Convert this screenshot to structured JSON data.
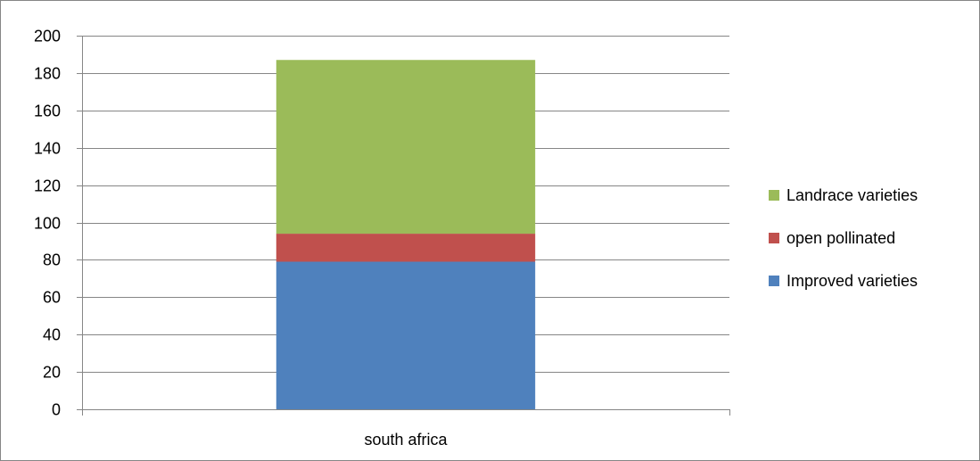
{
  "chart_data": {
    "type": "bar",
    "stacked": true,
    "categories": [
      "south africa"
    ],
    "series": [
      {
        "name": "Improved varieties",
        "values": [
          79
        ],
        "color": "#4F81BD"
      },
      {
        "name": "open pollinated",
        "values": [
          15
        ],
        "color": "#C0504D"
      },
      {
        "name": "Landrace varieties",
        "values": [
          93
        ],
        "color": "#9BBB59"
      }
    ],
    "ylim": [
      0,
      200
    ],
    "yticks": [
      0,
      20,
      40,
      60,
      80,
      100,
      120,
      140,
      160,
      180,
      200
    ],
    "grid": true,
    "legend_position": "right",
    "legend_order": [
      "Landrace varieties",
      "open pollinated",
      "Improved varieties"
    ],
    "gridline_color": "#868686",
    "axis_color": "#868686"
  }
}
